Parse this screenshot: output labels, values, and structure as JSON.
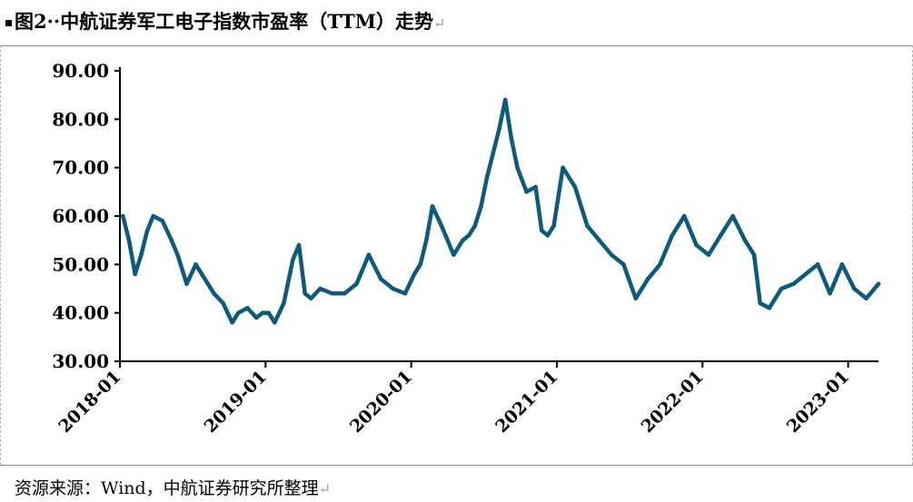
{
  "header": {
    "title": "图2··中航证券军工电子指数市盈率（TTM）走势",
    "return_mark": "↵"
  },
  "footer": {
    "source": "资源来源：Wind，中航证券研究所整理",
    "return_mark": "↵"
  },
  "colors": {
    "line": "#0e5a7e",
    "axis": "#000000"
  },
  "chart_data": {
    "type": "line",
    "title": "图2··中航证券军工电子指数市盈率（TTM）走势",
    "xlabel": "",
    "ylabel": "",
    "ylim": [
      30,
      90
    ],
    "yticks": [
      "30.00",
      "40.00",
      "50.00",
      "60.00",
      "70.00",
      "80.00",
      "90.00"
    ],
    "xticks": [
      "2018-01",
      "2019-01",
      "2020-01",
      "2021-01",
      "2022-01",
      "2023-01"
    ],
    "x_range": [
      "2018-01",
      "2023-03"
    ],
    "grid": false,
    "legend": "none",
    "series": [
      {
        "x": [
          "2018-01",
          "2018-01",
          "2018-02",
          "2018-02",
          "2018-03",
          "2018-03",
          "2018-04",
          "2018-05",
          "2018-05",
          "2018-06",
          "2018-07",
          "2018-07",
          "2018-08",
          "2018-08",
          "2018-09",
          "2018-10",
          "2018-10",
          "2018-11",
          "2018-12",
          "2018-12",
          "2019-01",
          "2019-01",
          "2019-02",
          "2019-03",
          "2019-03",
          "2019-04",
          "2019-04",
          "2019-05",
          "2019-06",
          "2019-07",
          "2019-08",
          "2019-09",
          "2019-10",
          "2019-11",
          "2019-12",
          "2020-01",
          "2020-01",
          "2020-02",
          "2020-02",
          "2020-03",
          "2020-04",
          "2020-05",
          "2020-05",
          "2020-06",
          "2020-06",
          "2020-07",
          "2020-07",
          "2020-08",
          "2020-08",
          "2020-09",
          "2020-09",
          "2020-10",
          "2020-11",
          "2020-11",
          "2020-12",
          "2020-12",
          "2021-01",
          "2021-02",
          "2021-03",
          "2021-04",
          "2021-05",
          "2021-06",
          "2021-07",
          "2021-08",
          "2021-09",
          "2021-10",
          "2021-11",
          "2021-12",
          "2022-01",
          "2022-02",
          "2022-03",
          "2022-04",
          "2022-05",
          "2022-05",
          "2022-06",
          "2022-07",
          "2022-08",
          "2022-09",
          "2022-10",
          "2022-11",
          "2022-12",
          "2023-01",
          "2023-02",
          "2023-03"
        ],
        "values": [
          60,
          55,
          48,
          52,
          57,
          60,
          59,
          55,
          52,
          46,
          50,
          48,
          46,
          44,
          42,
          38,
          40,
          41,
          39,
          40,
          40,
          38,
          42,
          51,
          54,
          44,
          43,
          45,
          44,
          44,
          46,
          52,
          47,
          45,
          44,
          48,
          50,
          55,
          62,
          58,
          52,
          55,
          56,
          58,
          62,
          68,
          73,
          78,
          84,
          76,
          70,
          65,
          66,
          57,
          56,
          58,
          70,
          66,
          58,
          55,
          52,
          50,
          43,
          47,
          50,
          56,
          60,
          54,
          52,
          56,
          60,
          55,
          52,
          42,
          41,
          45,
          46,
          48,
          50,
          44,
          50,
          45,
          43,
          46
        ]
      }
    ]
  }
}
